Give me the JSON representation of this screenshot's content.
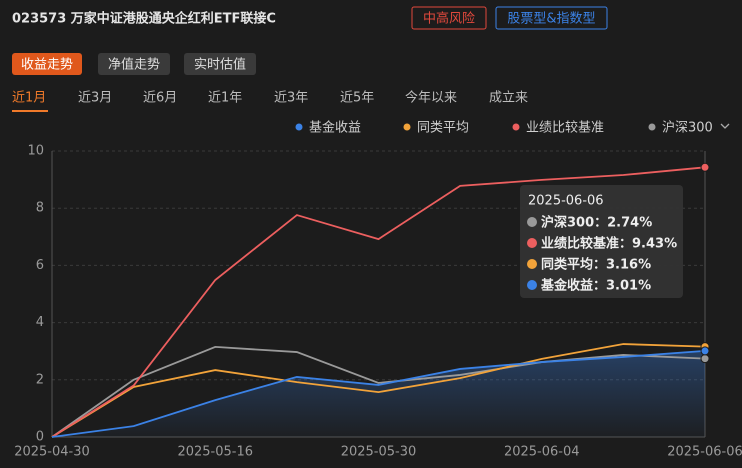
{
  "header": {
    "title": "023573  万家中证港股通央企红利ETF联接C",
    "tags": [
      "中高风险",
      "股票型&指数型"
    ]
  },
  "buttons": [
    "收益走势",
    "净值走势",
    "实时估值"
  ],
  "periods": [
    "近1月",
    "近3月",
    "近6月",
    "近1年",
    "近3年",
    "近5年",
    "今年以来",
    "成立来"
  ],
  "chart_data": {
    "type": "line",
    "categories": [
      "2025-04-30",
      null,
      "2025-05-16",
      null,
      "2025-05-30",
      null,
      "2025-06-04",
      null,
      "2025-06-06"
    ],
    "series": [
      {
        "name": "基金收益",
        "color": "#3b82e6",
        "values": [
          0,
          0.38,
          1.29,
          2.1,
          1.82,
          2.38,
          2.62,
          2.8,
          3.01
        ]
      },
      {
        "name": "同类平均",
        "color": "#f2a33a",
        "values": [
          0,
          1.75,
          2.34,
          1.92,
          1.57,
          2.06,
          2.73,
          3.25,
          3.16
        ]
      },
      {
        "name": "业绩比较基准",
        "color": "#ec5f5f",
        "values": [
          0,
          1.8,
          5.49,
          7.76,
          6.92,
          8.78,
          8.99,
          9.16,
          9.43
        ]
      },
      {
        "name": "沪深300",
        "color": "#9a9a9a",
        "values": [
          0,
          2.0,
          3.15,
          2.97,
          1.89,
          2.17,
          2.62,
          2.87,
          2.74
        ]
      }
    ],
    "ylim": [
      0,
      10
    ],
    "yticks": [
      0,
      2,
      4,
      6,
      8,
      10
    ],
    "grid": true,
    "tooltip": {
      "rows": [
        {
          "text": "沪深300：2.74%",
          "color": "#9a9a9a"
        },
        {
          "text": "业绩比较基准：9.43%",
          "color": "#ec5f5f"
        },
        {
          "text": "同类平均：3.16%",
          "color": "#f2a33a"
        },
        {
          "text": "基金收益：3.01%",
          "color": "#3b82e6"
        }
      ]
    }
  }
}
